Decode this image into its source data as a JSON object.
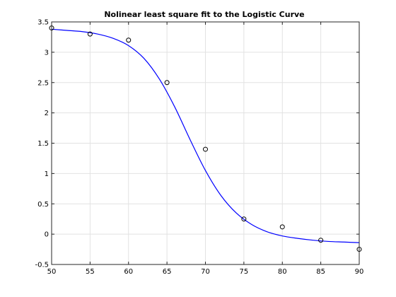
{
  "chart_data": {
    "type": "scatter",
    "title": "Nolinear least square fit to the Logistic Curve",
    "xlabel": "",
    "ylabel": "",
    "xlim": [
      50,
      90
    ],
    "ylim": [
      -0.5,
      3.5
    ],
    "xticks": [
      50,
      55,
      60,
      65,
      70,
      75,
      80,
      85,
      90
    ],
    "yticks": [
      -0.5,
      0,
      0.5,
      1,
      1.5,
      2,
      2.5,
      3,
      3.5
    ],
    "xtick_labels": [
      "50",
      "55",
      "60",
      "65",
      "70",
      "75",
      "80",
      "85",
      "90"
    ],
    "ytick_labels": [
      "-0.5",
      "0",
      "0.5",
      "1",
      "1.5",
      "2",
      "2.5",
      "3",
      "3.5"
    ],
    "grid": true,
    "series": [
      {
        "kind": "points",
        "marker": "circle-open",
        "color": "#000000",
        "x": [
          50,
          55,
          60,
          65,
          70,
          75,
          80,
          85,
          90
        ],
        "y": [
          3.4,
          3.3,
          3.2,
          2.5,
          1.4,
          0.25,
          0.12,
          -0.1,
          -0.25
        ]
      },
      {
        "kind": "line",
        "color": "#0000ff",
        "x": [
          50,
          52,
          54,
          56,
          58,
          60,
          62,
          64,
          66,
          68,
          70,
          72,
          74,
          76,
          78,
          80,
          82,
          84,
          86,
          88,
          90
        ],
        "y": [
          3.38,
          3.36,
          3.34,
          3.3,
          3.23,
          3.11,
          2.9,
          2.56,
          2.1,
          1.56,
          1.05,
          0.64,
          0.35,
          0.16,
          0.04,
          -0.03,
          -0.07,
          -0.1,
          -0.12,
          -0.13,
          -0.14
        ]
      }
    ]
  }
}
